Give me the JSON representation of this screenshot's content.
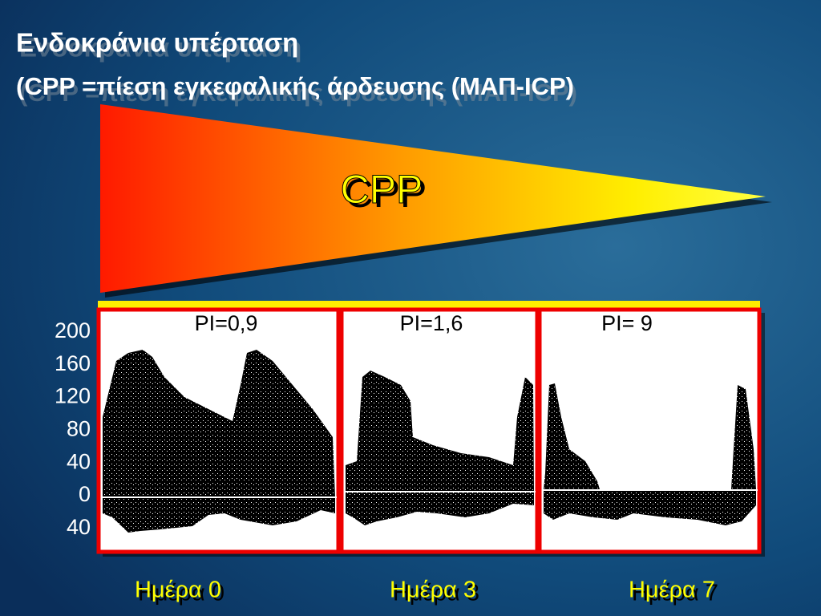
{
  "title": "Ενδοκράνια υπέρταση",
  "subtitle": "(CPP =πίεση εγκεφαλικής άρδευσης (ΜΑΠ-ICP)",
  "wedge_label": "CPP",
  "y_axis_labels": [
    "200",
    "160",
    "120",
    "80",
    "40",
    "0",
    "40"
  ],
  "panels": [
    {
      "index_label": "PI=0,9",
      "day": "Ημέρα 0"
    },
    {
      "index_label": "PI=1,6",
      "day": "Ημέρα 3"
    },
    {
      "index_label": "PI= 9",
      "day": "Ημέρα 7"
    }
  ]
}
